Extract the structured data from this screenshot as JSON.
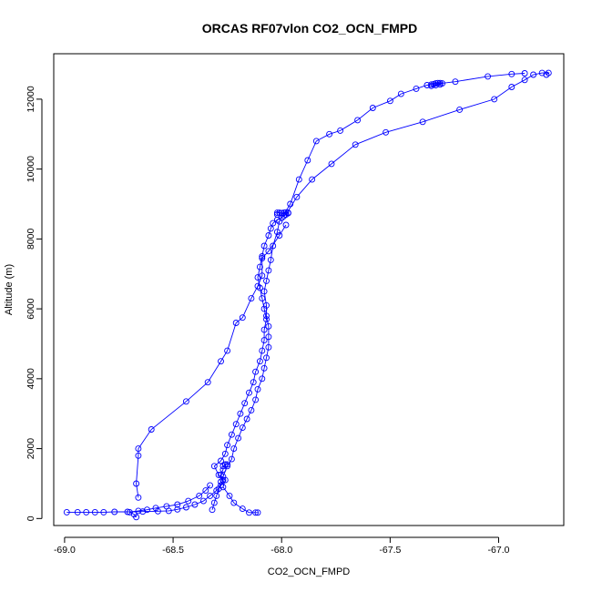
{
  "chart_data": {
    "type": "line",
    "title": "ORCAS RF07vlon CO2_OCN_FMPD",
    "xlabel": "CO2_OCN_FMPD",
    "ylabel": "Altitude (m)",
    "xlim": [
      -69.05,
      -66.7
    ],
    "ylim": [
      -200,
      13300
    ],
    "x_ticks": [
      -69.0,
      -68.5,
      -68.0,
      -67.5,
      -67.0
    ],
    "x_tick_labels": [
      "-69.0",
      "-68.5",
      "-68.0",
      "-67.5",
      "-67.0"
    ],
    "y_ticks": [
      0,
      2000,
      4000,
      6000,
      8000,
      10000,
      12000
    ],
    "y_tick_labels": [
      "0",
      "2000",
      "4000",
      "6000",
      "8000",
      "10000",
      "12000"
    ],
    "grid": false,
    "legend": "none",
    "marker": "open-circle",
    "color": "#0000ff",
    "series": [
      {
        "x": [
          -68.11,
          -68.12,
          -68.15,
          -68.18,
          -68.22,
          -68.24,
          -68.27,
          -68.26,
          -68.29,
          -68.31,
          -68.28,
          -68.26,
          -68.25,
          -68.23,
          -68.21,
          -68.19,
          -68.17,
          -68.15,
          -68.13,
          -68.12,
          -68.1,
          -68.09,
          -68.08,
          -68.08,
          -68.07,
          -68.08,
          -68.09,
          -68.1,
          -68.11,
          -68.1,
          -68.09,
          -68.08,
          -68.06,
          -68.05,
          -68.04,
          -68.02,
          -67.99,
          -67.97
        ],
        "y": [
          170,
          170,
          170,
          280,
          450,
          650,
          900,
          1100,
          1250,
          1500,
          1650,
          1850,
          2100,
          2400,
          2700,
          3000,
          3300,
          3600,
          3900,
          4200,
          4500,
          4800,
          5100,
          5400,
          5700,
          6000,
          6300,
          6600,
          6900,
          7200,
          7500,
          7800,
          8100,
          8300,
          8450,
          8550,
          8650,
          8750
        ]
      },
      {
        "x": [
          -68.99,
          -68.94,
          -68.9,
          -68.86,
          -68.82,
          -68.77,
          -68.71,
          -68.64,
          -68.57,
          -68.52,
          -68.48,
          -68.44,
          -68.4,
          -68.36,
          -68.33,
          -68.3,
          -68.28,
          -68.27,
          -68.28,
          -68.27,
          -68.27,
          -68.26,
          -68.26,
          -68.25
        ],
        "y": [
          180,
          180,
          180,
          180,
          180,
          190,
          190,
          200,
          210,
          220,
          260,
          320,
          400,
          500,
          650,
          800,
          950,
          1100,
          1250,
          1400,
          1500,
          1540,
          1550,
          1550
        ]
      },
      {
        "x": [
          -68.67,
          -68.68,
          -68.7,
          -68.66,
          -68.62,
          -68.58,
          -68.53,
          -68.48,
          -68.43,
          -68.38,
          -68.35,
          -68.33
        ],
        "y": [
          40,
          120,
          180,
          220,
          250,
          300,
          350,
          400,
          500,
          650,
          800,
          950
        ]
      },
      {
        "x": [
          -68.66,
          -68.67,
          -68.66,
          -68.66,
          -68.6,
          -68.44,
          -68.34,
          -68.28,
          -68.25,
          -68.21,
          -68.18,
          -68.14,
          -68.11,
          -68.09,
          -68.09,
          -68.06,
          -68.01,
          -67.98
        ],
        "y": [
          600,
          1000,
          1800,
          2000,
          2550,
          3350,
          3900,
          4500,
          4800,
          5600,
          5750,
          6300,
          6650,
          6950,
          7450,
          7650,
          8100,
          8400
        ]
      },
      {
        "x": [
          -68.32,
          -68.31,
          -68.3,
          -68.29,
          -68.28,
          -68.27,
          -68.25,
          -68.23,
          -68.22,
          -68.2,
          -68.18,
          -68.16,
          -68.14,
          -68.12,
          -68.11,
          -68.09,
          -68.08,
          -68.07,
          -68.06,
          -68.06,
          -68.06,
          -68.07,
          -68.07,
          -68.08,
          -68.07,
          -68.06,
          -68.05,
          -68.04,
          -68.02,
          -68.01
        ],
        "y": [
          250,
          450,
          650,
          850,
          1050,
          1200,
          1500,
          1700,
          2000,
          2300,
          2600,
          2850,
          3100,
          3400,
          3700,
          4000,
          4300,
          4600,
          4900,
          5200,
          5500,
          5800,
          6100,
          6500,
          6800,
          7100,
          7400,
          7800,
          8200,
          8500
        ]
      },
      {
        "x": [
          -68.02,
          -68.02,
          -68.01,
          -68.0,
          -67.99,
          -67.98,
          -67.97
        ],
        "y": [
          8700,
          8750,
          8750,
          8740,
          8750,
          8760,
          8740
        ]
      },
      {
        "x": [
          -68.0,
          -67.96,
          -67.92,
          -67.88,
          -67.84,
          -67.78,
          -67.73,
          -67.65,
          -67.58,
          -67.5,
          -67.45,
          -67.38,
          -67.33,
          -67.3,
          -67.29,
          -67.28,
          -67.27,
          -67.26,
          -67.27,
          -67.29,
          -67.31
        ],
        "y": [
          8600,
          9000,
          9700,
          10250,
          10800,
          11000,
          11100,
          11400,
          11750,
          11950,
          12150,
          12300,
          12400,
          12430,
          12450,
          12460,
          12460,
          12450,
          12420,
          12400,
          12380
        ]
      },
      {
        "x": [
          -67.98,
          -67.93,
          -67.86,
          -67.77,
          -67.66,
          -67.52,
          -67.35,
          -67.18,
          -67.02,
          -66.94,
          -66.88,
          -66.84,
          -66.8,
          -66.77,
          -66.78
        ],
        "y": [
          8700,
          9200,
          9700,
          10150,
          10700,
          11050,
          11350,
          11700,
          12000,
          12350,
          12550,
          12700,
          12750,
          12750,
          12700
        ]
      },
      {
        "x": [
          -67.31,
          -67.2,
          -67.05,
          -66.94,
          -66.88
        ],
        "y": [
          12420,
          12500,
          12650,
          12720,
          12740
        ]
      }
    ]
  }
}
